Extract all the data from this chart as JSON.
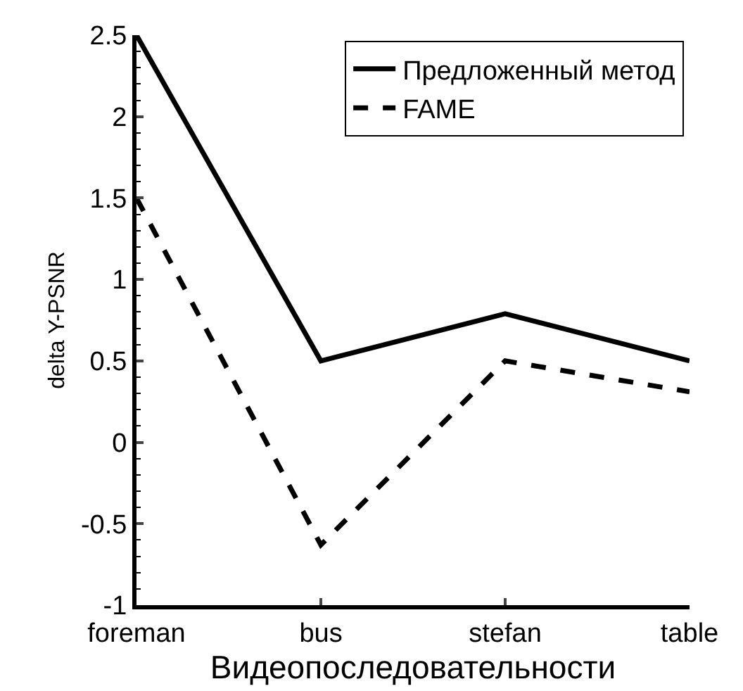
{
  "chart_data": {
    "type": "line",
    "xlabel": "Видеопоследовательности",
    "ylabel": "delta Y-PSNR",
    "categories": [
      "foreman",
      "bus",
      "stefan",
      "table"
    ],
    "series": [
      {
        "name": "Предложенный метод",
        "color": "#000000",
        "line_style": "solid",
        "values": [
          2.5,
          0.5,
          0.79,
          0.5
        ]
      },
      {
        "name": "FAME",
        "color": "#000000",
        "line_style": "dashed",
        "values": [
          1.5,
          -0.63,
          0.5,
          0.31
        ]
      }
    ],
    "ylim": [
      -1,
      2.5
    ],
    "yticks": [
      -1,
      -0.5,
      0,
      0.5,
      1,
      1.5,
      2,
      2.5
    ],
    "legend": "top right",
    "marker": "none"
  }
}
